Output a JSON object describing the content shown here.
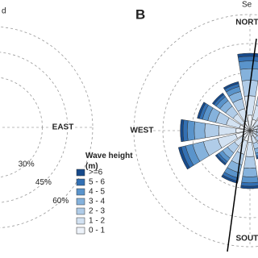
{
  "chart_data": [
    {
      "type": "rose",
      "title": "d",
      "categories": [
        null,
        null,
        null,
        null,
        "EAST",
        null,
        null,
        null,
        null,
        null,
        null,
        null,
        null,
        null,
        null,
        null
      ],
      "rlim": [
        0,
        60
      ],
      "rticks": [
        {
          "value": 30,
          "label": "30%"
        },
        {
          "value": 45,
          "label": "45%"
        },
        {
          "value": 60,
          "label": "60%"
        }
      ]
    },
    {
      "type": "rose",
      "title": "B",
      "subtitle": "Se",
      "categories": [
        "NORTH",
        null,
        null,
        null,
        null,
        null,
        null,
        null,
        "SOUTH",
        null,
        null,
        null,
        "WEST",
        null,
        null,
        null
      ],
      "rlim": [
        0,
        60
      ],
      "legend_title": "Wave height (m)",
      "series": [
        {
          "name": "0 - 1",
          "color": "#eef3fa",
          "values": [
            8,
            6,
            3,
            2,
            1.6,
            1.6,
            2,
            3,
            6,
            5.6,
            4.4,
            7.6,
            7.2,
            5.6,
            4.8,
            5.2
          ]
        },
        {
          "name": "1 - 2",
          "color": "#d3e2f2",
          "values": [
            10,
            7.5,
            3.8,
            2.5,
            2,
            2,
            2.5,
            3.8,
            7.5,
            7,
            5.5,
            9.5,
            9,
            7,
            6,
            6.5
          ]
        },
        {
          "name": "2 - 3",
          "color": "#b0cce8",
          "values": [
            8,
            6,
            3,
            2,
            1.6,
            1.6,
            2,
            3,
            6,
            5.6,
            4.4,
            7.6,
            7.2,
            5.6,
            4.8,
            5.2
          ]
        },
        {
          "name": "3 - 4",
          "color": "#85b2dc",
          "values": [
            6,
            4.5,
            2.3,
            1.5,
            1.2,
            1.2,
            1.5,
            2.3,
            4.5,
            4.2,
            3.3,
            5.7,
            5.4,
            4.2,
            3.6,
            3.9
          ]
        },
        {
          "name": "4 - 5",
          "color": "#5a94cb",
          "values": [
            4,
            3,
            1.5,
            1,
            0.8,
            0.8,
            1,
            1.5,
            3,
            2.8,
            2.2,
            3.8,
            3.6,
            2.8,
            2.4,
            2.6
          ]
        },
        {
          "name": "5 - 6",
          "color": "#3370b3",
          "values": [
            2.4,
            1.8,
            0.9,
            0.6,
            0.5,
            0.5,
            0.6,
            0.9,
            1.8,
            1.7,
            1.3,
            2.3,
            2.2,
            1.7,
            1.4,
            1.6
          ]
        },
        {
          "name": ">=6",
          "color": "#174a8b",
          "values": [
            1.6,
            1.2,
            0.6,
            0.4,
            0.3,
            0.3,
            0.4,
            0.6,
            1.2,
            1.1,
            0.9,
            1.5,
            1.4,
            1.1,
            1,
            1
          ]
        }
      ]
    }
  ]
}
